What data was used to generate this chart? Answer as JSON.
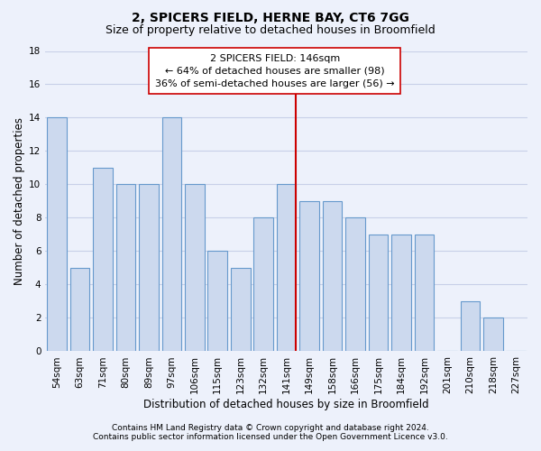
{
  "title": "2, SPICERS FIELD, HERNE BAY, CT6 7GG",
  "subtitle": "Size of property relative to detached houses in Broomfield",
  "xlabel": "Distribution of detached houses by size in Broomfield",
  "ylabel": "Number of detached properties",
  "categories": [
    "54sqm",
    "63sqm",
    "71sqm",
    "80sqm",
    "89sqm",
    "97sqm",
    "106sqm",
    "115sqm",
    "123sqm",
    "132sqm",
    "141sqm",
    "149sqm",
    "158sqm",
    "166sqm",
    "175sqm",
    "184sqm",
    "192sqm",
    "201sqm",
    "210sqm",
    "218sqm",
    "227sqm"
  ],
  "values": [
    14,
    5,
    11,
    10,
    10,
    14,
    10,
    6,
    5,
    8,
    10,
    9,
    9,
    8,
    7,
    7,
    7,
    0,
    3,
    2,
    0
  ],
  "bar_color": "#ccd9ee",
  "bar_edge_color": "#6699cc",
  "red_line_index": 10,
  "annotation_line1": "2 SPICERS FIELD: 146sqm",
  "annotation_line2": "← 64% of detached houses are smaller (98)",
  "annotation_line3": "36% of semi-detached houses are larger (56) →",
  "ylim": [
    0,
    18
  ],
  "yticks": [
    0,
    2,
    4,
    6,
    8,
    10,
    12,
    14,
    16,
    18
  ],
  "footer_line1": "Contains HM Land Registry data © Crown copyright and database right 2024.",
  "footer_line2": "Contains public sector information licensed under the Open Government Licence v3.0.",
  "background_color": "#edf1fb",
  "grid_color": "#c8d0e8",
  "title_fontsize": 10,
  "subtitle_fontsize": 9,
  "annot_fontsize": 8,
  "xlabel_fontsize": 8.5,
  "ylabel_fontsize": 8.5,
  "tick_fontsize": 7.5,
  "footer_fontsize": 6.5
}
